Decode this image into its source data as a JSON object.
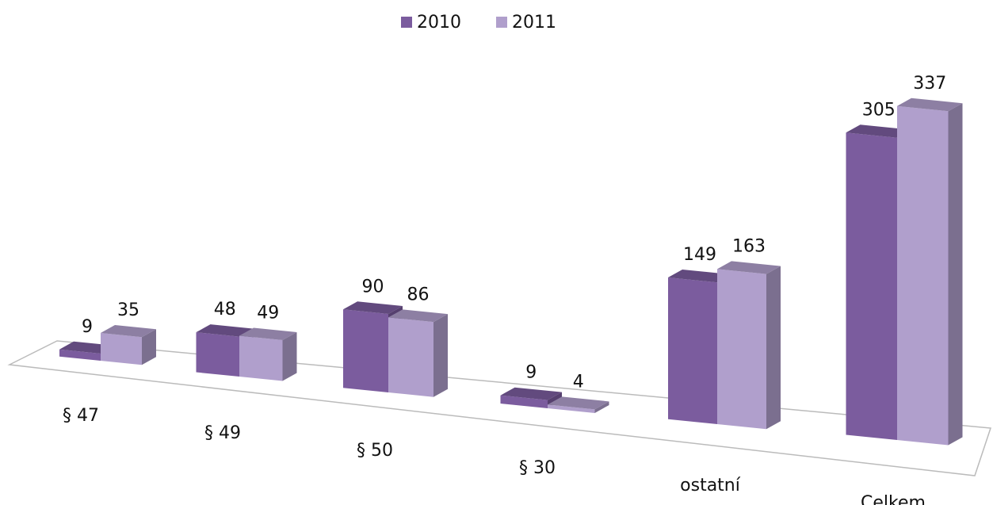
{
  "chart_data": {
    "type": "bar3d",
    "categories": [
      "§ 47",
      "§ 49",
      "§ 50",
      "§ 30",
      "ostatní",
      "Celkem"
    ],
    "series": [
      {
        "name": "2010",
        "color": "#7b5c9e",
        "values": [
          9,
          48,
          90,
          9,
          149,
          305
        ]
      },
      {
        "name": "2011",
        "color": "#b09fcc",
        "values": [
          35,
          49,
          86,
          4,
          163,
          337
        ]
      }
    ],
    "legend": "top"
  }
}
